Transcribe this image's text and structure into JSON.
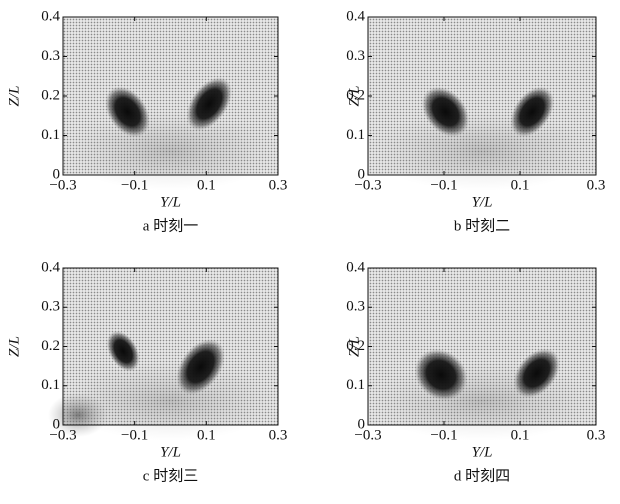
{
  "chart_data": [
    {
      "type": "field",
      "xlabel": "Y/L",
      "ylabel": "Z/L",
      "caption": "a 时刻一",
      "xlim": [
        -0.3,
        0.3
      ],
      "ylim": [
        0,
        0.4
      ],
      "xticks": [
        {
          "value": -0.3,
          "label": "−0.3"
        },
        {
          "value": -0.1,
          "label": "−0.1"
        },
        0.1,
        0.3
      ],
      "yticks": [
        0,
        0.1,
        0.2,
        0.3,
        0.4
      ]
    },
    {
      "type": "field",
      "xlabel": "Y/L",
      "ylabel": "Z/L",
      "caption": "b 时刻二",
      "xlim": [
        -0.3,
        0.3
      ],
      "ylim": [
        0,
        0.4
      ],
      "xticks": [
        {
          "value": -0.3,
          "label": "−0.3"
        },
        {
          "value": -0.1,
          "label": "−0.1"
        },
        0.1,
        0.3
      ],
      "yticks": [
        0,
        0.1,
        0.2,
        0.3,
        0.4
      ]
    },
    {
      "type": "field",
      "xlabel": "Y/L",
      "ylabel": "Z/L",
      "caption": "c 时刻三",
      "xlim": [
        -0.3,
        0.3
      ],
      "ylim": [
        0,
        0.4
      ],
      "xticks": [
        {
          "value": -0.3,
          "label": "−0.3"
        },
        {
          "value": -0.1,
          "label": "−0.1"
        },
        0.1,
        0.3
      ],
      "yticks": [
        0,
        0.1,
        0.2,
        0.3,
        0.4
      ]
    },
    {
      "type": "field",
      "xlabel": "Y/L",
      "ylabel": "Z/L",
      "caption": "d 时刻四",
      "xlim": [
        -0.3,
        0.3
      ],
      "ylim": [
        0,
        0.4
      ],
      "xticks": [
        {
          "value": -0.3,
          "label": "−0.3"
        },
        {
          "value": -0.1,
          "label": "−0.1"
        },
        0.1,
        0.3
      ],
      "yticks": [
        0,
        0.1,
        0.2,
        0.3,
        0.4
      ]
    }
  ]
}
